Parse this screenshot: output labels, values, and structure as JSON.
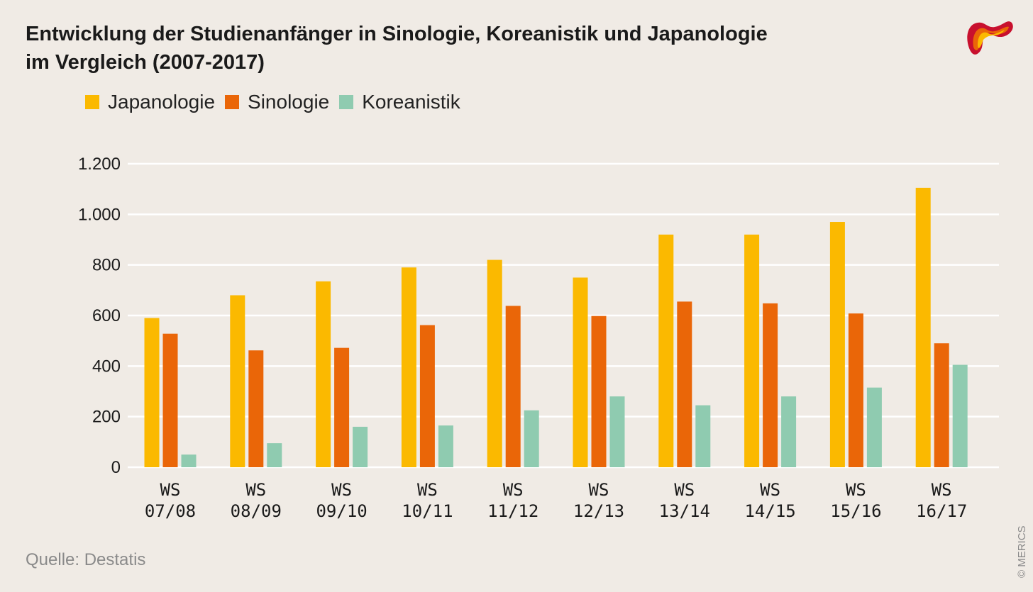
{
  "title": {
    "line1": "Entwicklung der Studienanfänger in Sinologie, Koreanistik und Japanologie",
    "line2": "im Vergleich (2007-2017)"
  },
  "legend": [
    {
      "label": "Japanologie",
      "color": "#fbb900"
    },
    {
      "label": "Sinologie",
      "color": "#ea6608"
    },
    {
      "label": "Koreanistik",
      "color": "#8fcbb0"
    }
  ],
  "source": "Quelle: Destatis",
  "copyright": "© MERICS",
  "chart_data": {
    "type": "bar",
    "title": "Entwicklung der Studienanfänger in Sinologie, Koreanistik und Japanologie im Vergleich (2007-2017)",
    "xlabel": "",
    "ylabel": "",
    "ylim": [
      0,
      1200
    ],
    "yticks": [
      0,
      200,
      400,
      600,
      800,
      1000,
      1200
    ],
    "ytick_labels": [
      "0",
      "200",
      "400",
      "600",
      "800",
      "1.000",
      "1.200"
    ],
    "categories": [
      [
        "WS",
        "07/08"
      ],
      [
        "WS",
        "08/09"
      ],
      [
        "WS",
        "09/10"
      ],
      [
        "WS",
        "10/11"
      ],
      [
        "WS",
        "11/12"
      ],
      [
        "WS",
        "12/13"
      ],
      [
        "WS",
        "13/14"
      ],
      [
        "WS",
        "14/15"
      ],
      [
        "WS",
        "15/16"
      ],
      [
        "WS",
        "16/17"
      ]
    ],
    "series": [
      {
        "name": "Japanologie",
        "color": "#fbb900",
        "values": [
          590,
          680,
          735,
          790,
          820,
          750,
          920,
          920,
          970,
          1105
        ]
      },
      {
        "name": "Sinologie",
        "color": "#ea6608",
        "values": [
          528,
          462,
          472,
          562,
          638,
          598,
          655,
          648,
          608,
          490
        ]
      },
      {
        "name": "Koreanistik",
        "color": "#8fcbb0",
        "values": [
          50,
          95,
          160,
          165,
          225,
          280,
          245,
          280,
          315,
          405
        ]
      }
    ],
    "grid": true,
    "legend_position": "top-left"
  }
}
